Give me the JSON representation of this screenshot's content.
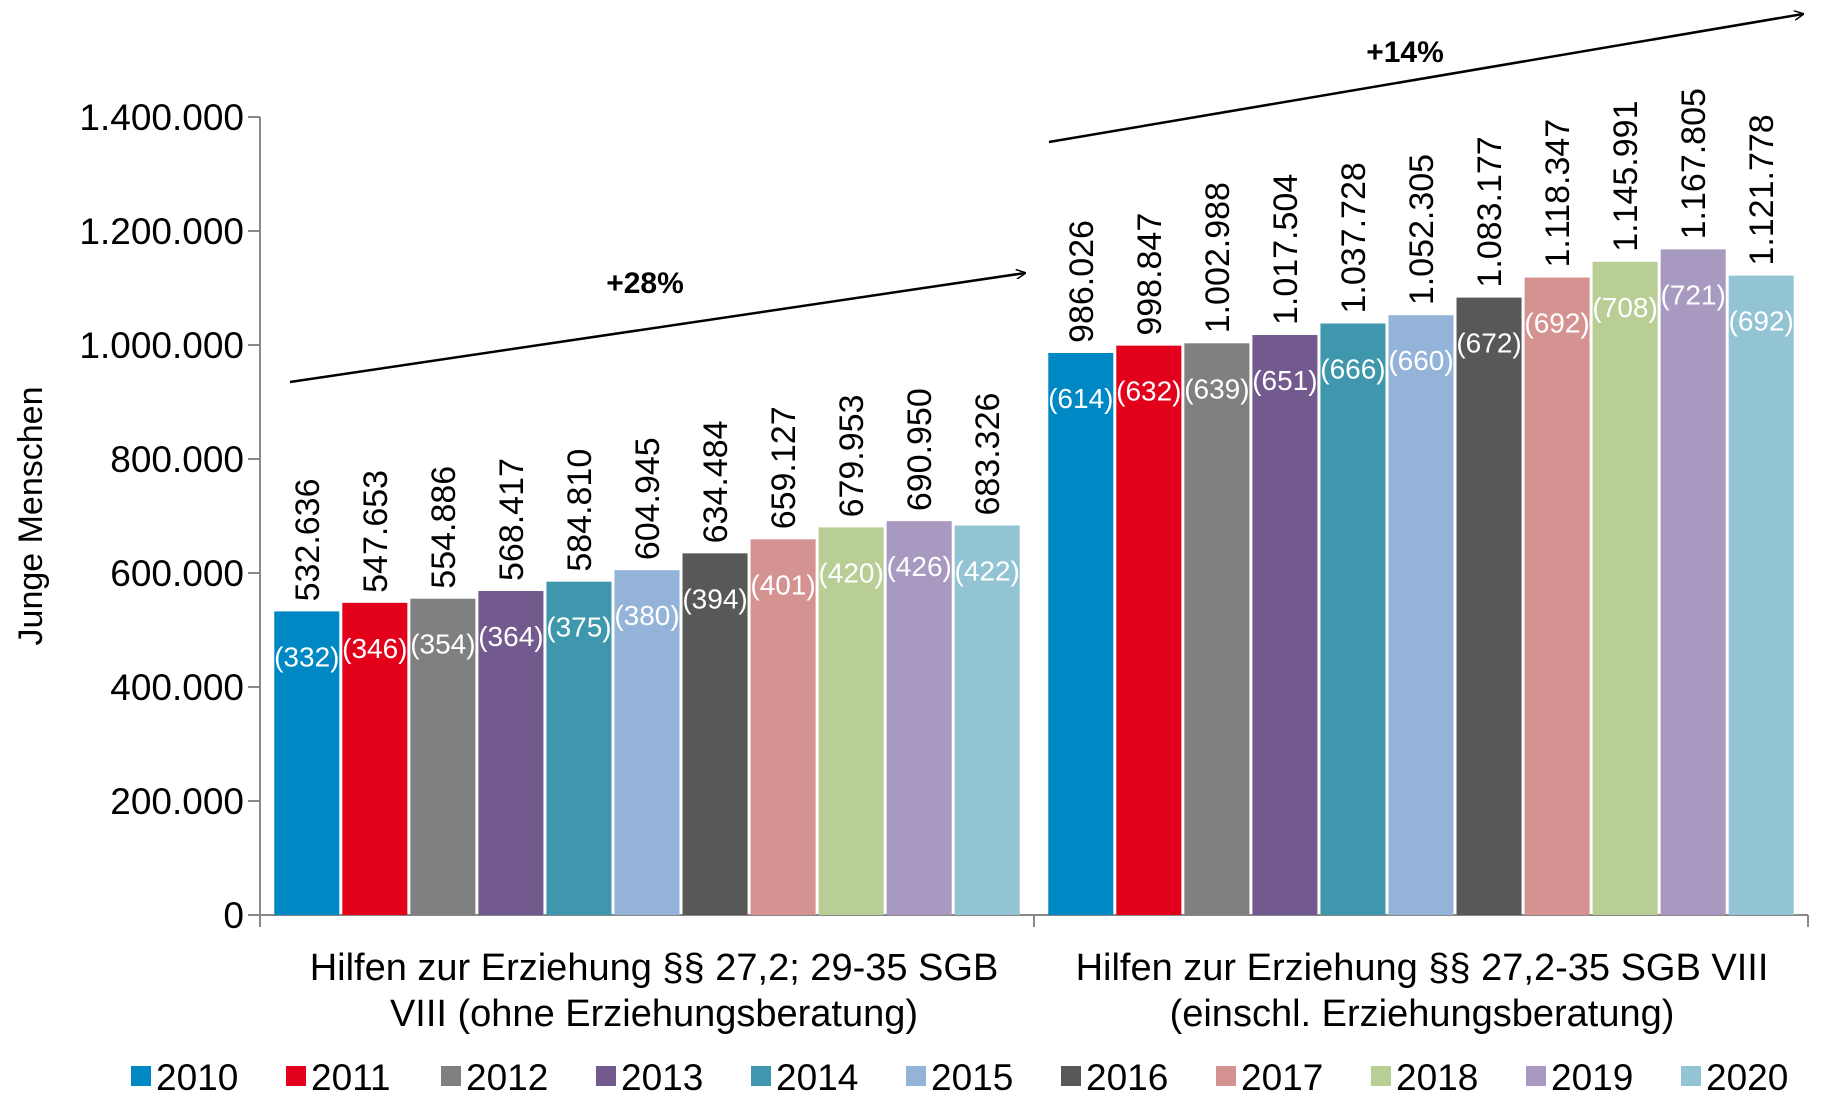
{
  "chart_data": {
    "type": "bar",
    "y_label": "Junge Menschen",
    "categories": [
      "Hilfen zur Erziehung §§ 27,2; 29-35 SGB VIII (ohne Erziehungsberatung)",
      "Hilfen zur Erziehung §§ 27,2-35 SGB VIII (einschl. Erziehungsberatung)"
    ],
    "series": [
      {
        "name": "2010",
        "color": "#0088c4",
        "values": [
          532636,
          986026
        ],
        "value_labels": [
          "532.636",
          "986.026"
        ],
        "inner_labels": [
          "(332)",
          "(614)"
        ]
      },
      {
        "name": "2011",
        "color": "#e2001a",
        "values": [
          547653,
          998847
        ],
        "value_labels": [
          "547.653",
          "998.847"
        ],
        "inner_labels": [
          "(346)",
          "(632)"
        ]
      },
      {
        "name": "2012",
        "color": "#808080",
        "values": [
          554886,
          1002988
        ],
        "value_labels": [
          "554.886",
          "1.002.988"
        ],
        "inner_labels": [
          "(354)",
          "(639)"
        ]
      },
      {
        "name": "2013",
        "color": "#725a8f",
        "values": [
          568417,
          1017504
        ],
        "value_labels": [
          "568.417",
          "1.017.504"
        ],
        "inner_labels": [
          "(364)",
          "(651)"
        ]
      },
      {
        "name": "2014",
        "color": "#3f97ad",
        "values": [
          584810,
          1037728
        ],
        "value_labels": [
          "584.810",
          "1.037.728"
        ],
        "inner_labels": [
          "(375)",
          "(666)"
        ]
      },
      {
        "name": "2015",
        "color": "#94b3d9",
        "values": [
          604945,
          1052305
        ],
        "value_labels": [
          "604.945",
          "1.052.305"
        ],
        "inner_labels": [
          "(380)",
          "(660)"
        ]
      },
      {
        "name": "2016",
        "color": "#585858",
        "values": [
          634484,
          1083177
        ],
        "value_labels": [
          "634.484",
          "1.083.177"
        ],
        "inner_labels": [
          "(394)",
          "(672)"
        ]
      },
      {
        "name": "2017",
        "color": "#d49391",
        "values": [
          659127,
          1118347
        ],
        "value_labels": [
          "659.127",
          "1.118.347"
        ],
        "inner_labels": [
          "(401)",
          "(692)"
        ]
      },
      {
        "name": "2018",
        "color": "#b8ce95",
        "values": [
          679953,
          1145991
        ],
        "value_labels": [
          "679.953",
          "1.145.991"
        ],
        "inner_labels": [
          "(420)",
          "(708)"
        ]
      },
      {
        "name": "2019",
        "color": "#a899c1",
        "values": [
          690950,
          1167805
        ],
        "value_labels": [
          "690.950",
          "1.167.805"
        ],
        "inner_labels": [
          "(426)",
          "(721)"
        ]
      },
      {
        "name": "2020",
        "color": "#92c4d4",
        "values": [
          683326,
          1121778
        ],
        "value_labels": [
          "683.326",
          "1.121.778"
        ],
        "inner_labels": [
          "(422)",
          "(692)"
        ]
      }
    ],
    "ylim": [
      0,
      1400000
    ],
    "yticks": [
      0,
      {
        "value": 200000,
        "label": "200.000"
      },
      {
        "value": 400000,
        "label": "400.000"
      },
      {
        "value": 600000,
        "label": "600.000"
      },
      {
        "value": 800000,
        "label": "800.000"
      },
      {
        "value": 1000000,
        "label": "1.000.000"
      },
      {
        "value": 1200000,
        "label": "1.200.000"
      },
      {
        "value": 1400000,
        "label": "1.400.000"
      }
    ],
    "annotations": [
      "+28%",
      "+14%"
    ],
    "legend": "bottom"
  }
}
